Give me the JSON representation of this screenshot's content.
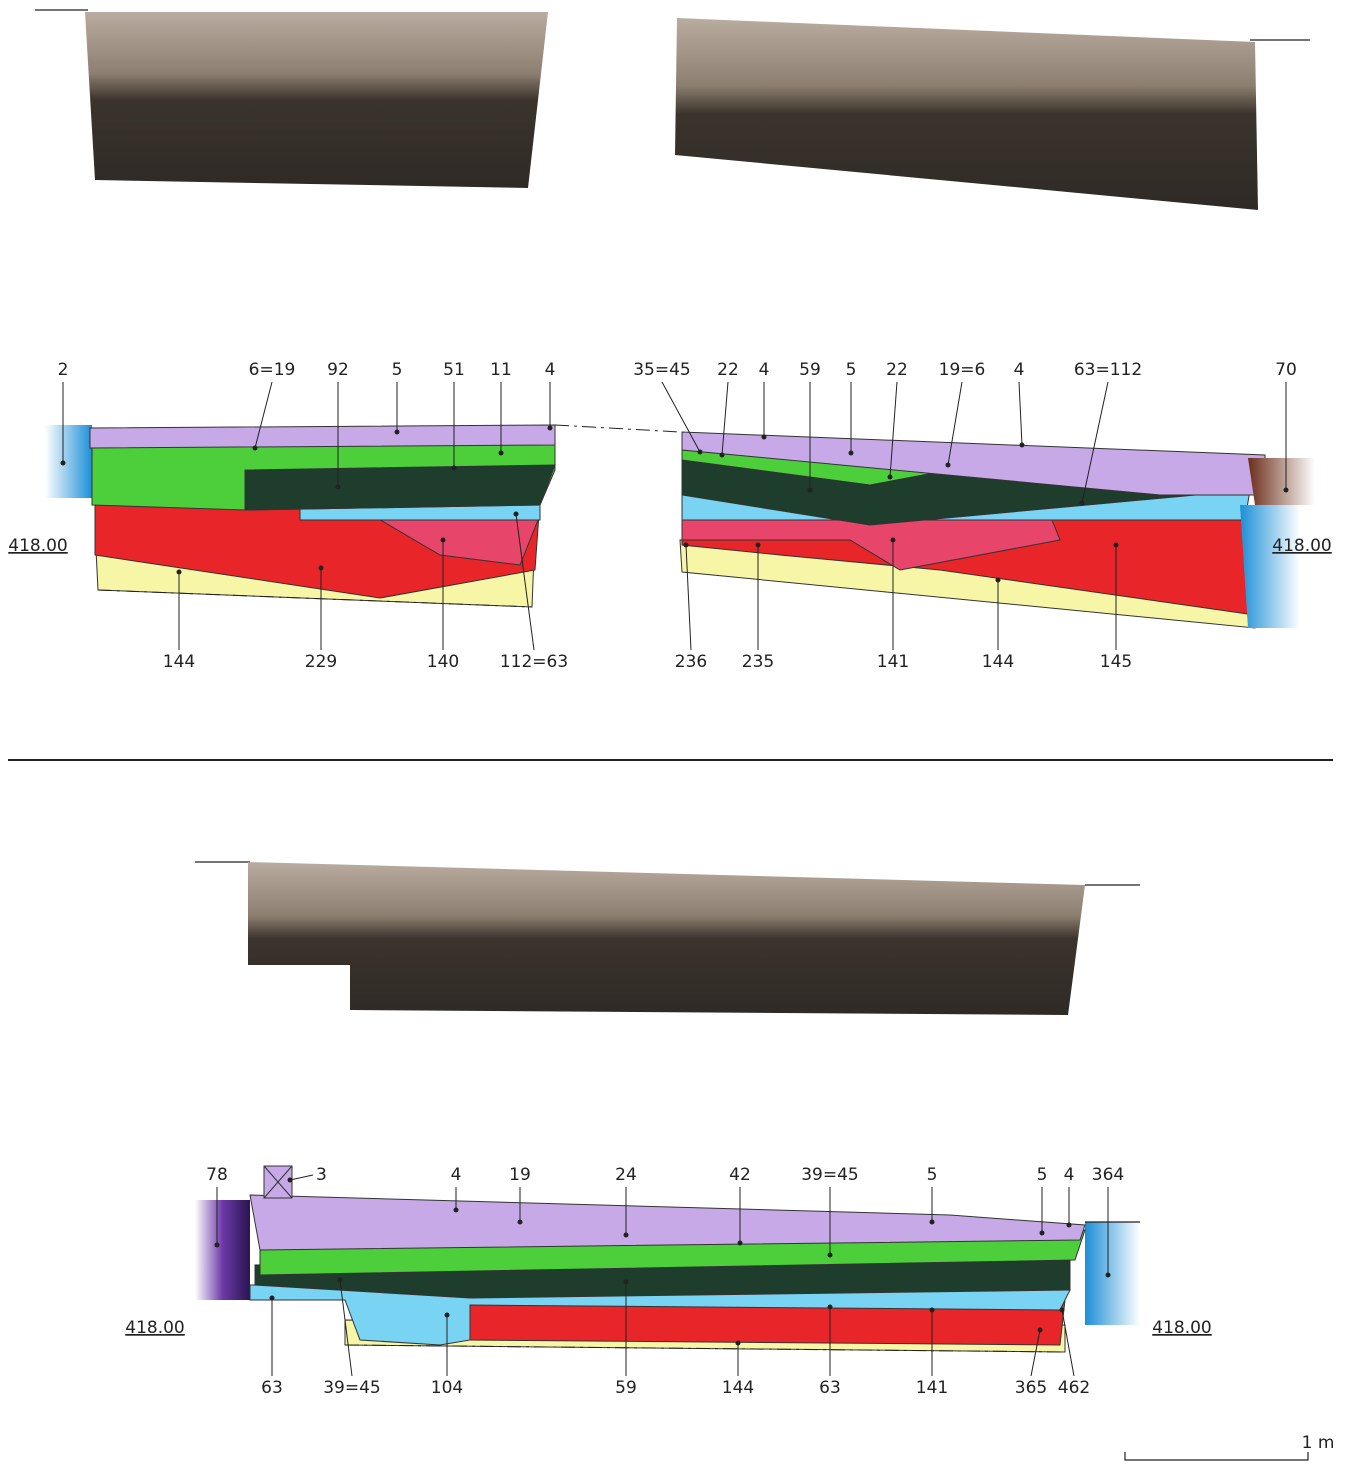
{
  "section_1": {
    "top_labels": [
      "2",
      "6=19",
      "92",
      "5",
      "51",
      "11",
      "4",
      "35=45",
      "22",
      "4",
      "59",
      "5",
      "22",
      "19=6",
      "4",
      "63=112",
      "70"
    ],
    "bottom_labels": [
      "144",
      "229",
      "140",
      "112=63",
      "236",
      "235",
      "141",
      "144",
      "145"
    ],
    "elevation_labels": [
      "418.00",
      "418.00"
    ]
  },
  "section_2": {
    "top_labels": [
      "78",
      "3",
      "4",
      "19",
      "24",
      "42",
      "39=45",
      "5",
      "5",
      "4",
      "364"
    ],
    "bottom_labels": [
      "63",
      "39=45",
      "104",
      "59",
      "144",
      "63",
      "141",
      "365",
      "462"
    ],
    "elevation_labels": [
      "418.00",
      "418.00"
    ]
  },
  "scale_label": "1 m"
}
